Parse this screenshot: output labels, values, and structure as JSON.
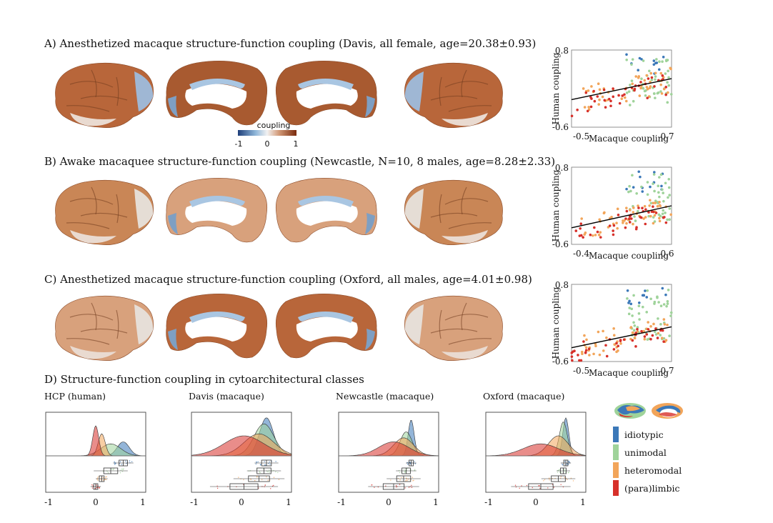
{
  "colors": {
    "idiotypic": "#3b78b8",
    "unimodal": "#9fd39a",
    "heteromodal": "#f2a55a",
    "paralimbic": "#d7302a",
    "coupling_neg": "#1e3f7a",
    "coupling_pos": "#7a2a0c"
  },
  "panelA": {
    "title": "A) Anesthetized macaque structure-function coupling (Davis, all female, age=20.38±0.93)"
  },
  "panelB": {
    "title": "B) Awake macaquee structure-function coupling (Newcastle, N=10, 8 males, age=8.28±2.33)"
  },
  "panelC": {
    "title": "C) Anesthetized macaque structure-function coupling (Oxford, all males, age=4.01±0.98)"
  },
  "panelD": {
    "title": "D) Structure-function coupling in cytoarchitectural classes",
    "subtitles": [
      "HCP (human)",
      "Davis (macaque)",
      "Newcastle (macaque)",
      "Oxford (macaque)"
    ],
    "xticks": [
      "-1",
      "0",
      "1"
    ]
  },
  "colorbar": {
    "label": "coupling",
    "ticks": [
      "-1",
      "0",
      "1"
    ]
  },
  "legend": [
    {
      "label": "idiotypic",
      "color": "#3b78b8"
    },
    {
      "label": "unimodal",
      "color": "#9fd39a"
    },
    {
      "label": "heteromodal",
      "color": "#f2a55a"
    },
    {
      "label": "(para)limbic",
      "color": "#d7302a"
    }
  ],
  "chart_data": [
    {
      "type": "scatter",
      "title": "",
      "xlabel": "Macaque coupling",
      "ylabel": "Human coupling",
      "xlim": [
        -0.5,
        0.7
      ],
      "ylim": [
        -0.6,
        0.8
      ],
      "xticks": [
        "-0.5",
        "0.7"
      ],
      "yticks": [
        "0.8",
        "-0.6"
      ],
      "fit_line": [
        [
          -0.5,
          -0.1
        ],
        [
          0.7,
          0.28
        ]
      ]
    },
    {
      "type": "scatter",
      "title": "",
      "xlabel": "Macaque coupling",
      "ylabel": "Human coupling",
      "xlim": [
        -0.4,
        0.6
      ],
      "ylim": [
        -0.6,
        0.8
      ],
      "xticks": [
        "-0.4",
        "0.6"
      ],
      "yticks": [
        "0.8",
        "-0.6"
      ],
      "fit_line": [
        [
          -0.4,
          -0.3
        ],
        [
          0.6,
          0.1
        ]
      ]
    },
    {
      "type": "scatter",
      "title": "",
      "xlabel": "Macaque coupling",
      "ylabel": "Human coupling",
      "xlim": [
        -0.5,
        0.7
      ],
      "ylim": [
        -0.6,
        0.8
      ],
      "xticks": [
        "-0.5",
        "0.7"
      ],
      "yticks": [
        "0.8",
        "-0.6"
      ],
      "fit_line": [
        [
          -0.5,
          -0.35
        ],
        [
          0.7,
          0.03
        ]
      ]
    }
  ]
}
